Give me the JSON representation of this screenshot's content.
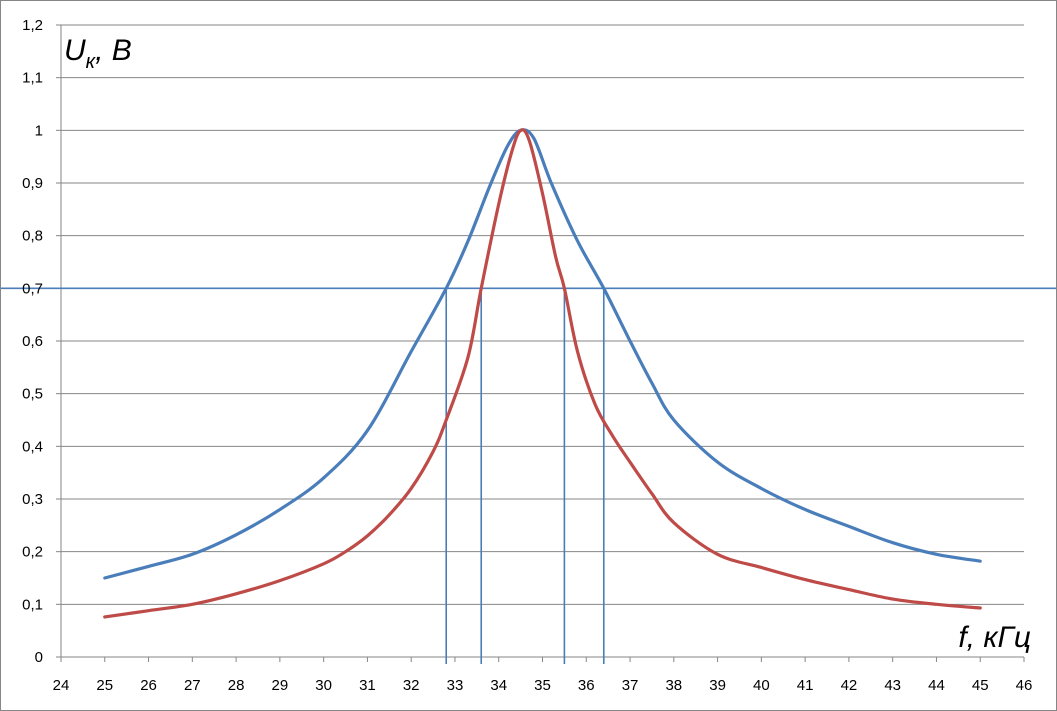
{
  "chart_data": {
    "type": "line",
    "title": "",
    "xlabel": "f, кГц",
    "ylabel_main": "U",
    "ylabel_sub": "к",
    "ylabel_unit": ", В",
    "xlim": [
      24,
      46
    ],
    "ylim": [
      0,
      1.2
    ],
    "x_ticks": [
      "24",
      "25",
      "26",
      "27",
      "28",
      "29",
      "30",
      "31",
      "32",
      "33",
      "34",
      "35",
      "36",
      "37",
      "38",
      "39",
      "40",
      "41",
      "42",
      "43",
      "44",
      "45",
      "46"
    ],
    "y_ticks": [
      "0",
      "0,1",
      "0,2",
      "0,3",
      "0,4",
      "0,5",
      "0,6",
      "0,7",
      "0,8",
      "0,9",
      "1",
      "1,1",
      "1,2"
    ],
    "grid": true,
    "legend": "none",
    "reference_line_y": 0.7,
    "reference_lines_x": [
      32.8,
      33.6,
      35.5,
      36.4
    ],
    "series": [
      {
        "color": "#4a7ebb",
        "x": [
          25,
          26,
          27,
          28,
          29,
          30,
          31,
          32,
          32.8,
          33.3,
          33.8,
          34.2,
          34.5,
          34.8,
          35.2,
          35.8,
          36.4,
          37,
          37.5,
          38,
          39,
          40,
          41,
          42,
          43,
          44,
          45
        ],
        "y": [
          0.15,
          0.172,
          0.195,
          0.232,
          0.28,
          0.34,
          0.43,
          0.58,
          0.7,
          0.79,
          0.895,
          0.97,
          1.0,
          0.985,
          0.9,
          0.79,
          0.7,
          0.6,
          0.52,
          0.45,
          0.37,
          0.32,
          0.28,
          0.248,
          0.217,
          0.195,
          0.182
        ]
      },
      {
        "color": "#be4b48",
        "x": [
          25,
          26,
          27,
          28,
          29,
          30,
          30.5,
          31,
          31.5,
          32,
          32.5,
          32.8,
          33.3,
          33.6,
          34,
          34.3,
          34.5,
          34.7,
          35,
          35.3,
          35.5,
          35.8,
          36.2,
          36.6,
          37,
          37.5,
          38,
          39,
          40,
          41,
          42,
          43,
          44,
          45
        ],
        "y": [
          0.076,
          0.088,
          0.1,
          0.12,
          0.145,
          0.177,
          0.2,
          0.23,
          0.27,
          0.32,
          0.39,
          0.45,
          0.57,
          0.7,
          0.86,
          0.96,
          1.0,
          0.98,
          0.88,
          0.76,
          0.7,
          0.58,
          0.48,
          0.42,
          0.37,
          0.31,
          0.255,
          0.195,
          0.17,
          0.147,
          0.128,
          0.11,
          0.1,
          0.093
        ]
      }
    ]
  }
}
